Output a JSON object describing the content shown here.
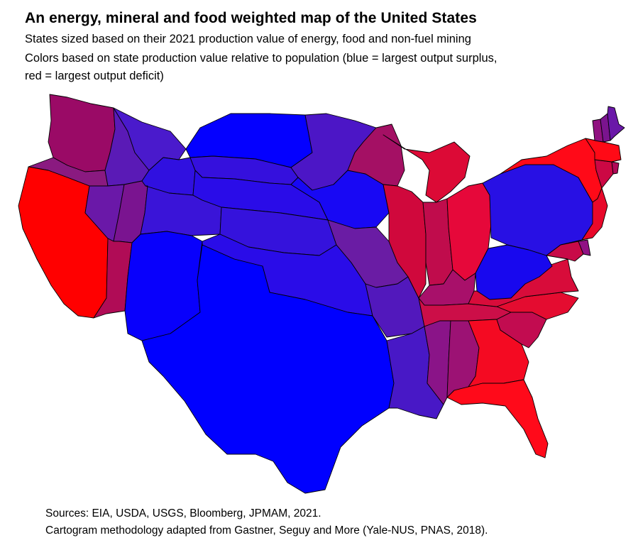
{
  "title": "An energy, mineral and food weighted map of the United States",
  "subtitle_lines": [
    "States sized based on their 2021 production value of energy, food and non-fuel mining",
    "Colors based on state production value relative to population (blue = largest output surplus,",
    "red = largest output deficit)"
  ],
  "sources": [
    "Sources: EIA, USDA, USGS, Bloomberg, JPMAM, 2021.",
    "Cartogram methodology adapted from Gastner, Seguy and More (Yale-NUS, PNAS, 2018)."
  ],
  "color_scale": {
    "surplus": "#0000ff",
    "deficit": "#ff0000"
  },
  "map": {
    "type": "cartogram",
    "regions": [
      {
        "key": "WA",
        "color": "#9a0a66"
      },
      {
        "key": "OR",
        "color": "#8a1a80"
      },
      {
        "key": "CA",
        "color": "#ff0000"
      },
      {
        "key": "ID",
        "color": "#5a1ab6"
      },
      {
        "key": "NV",
        "color": "#6a18a8"
      },
      {
        "key": "UT",
        "color": "#7a1490"
      },
      {
        "key": "AZ",
        "color": "#b00c56"
      },
      {
        "key": "MT",
        "color": "#4a1acc"
      },
      {
        "key": "WY",
        "color": "#3010e0"
      },
      {
        "key": "CO",
        "color": "#3a14d8"
      },
      {
        "key": "NM",
        "color": "#0800fc"
      },
      {
        "key": "ND",
        "color": "#0400ff"
      },
      {
        "key": "SD",
        "color": "#3510dd"
      },
      {
        "key": "NE",
        "color": "#2a0ce8"
      },
      {
        "key": "KS",
        "color": "#3512dc"
      },
      {
        "key": "OK",
        "color": "#2a0ce8"
      },
      {
        "key": "TX",
        "color": "#0000ff"
      },
      {
        "key": "MN",
        "color": "#4c16c6"
      },
      {
        "key": "IA",
        "color": "#1808f4"
      },
      {
        "key": "MO",
        "color": "#6a1ca4"
      },
      {
        "key": "AR",
        "color": "#5218bc"
      },
      {
        "key": "LA",
        "color": "#4818c6"
      },
      {
        "key": "WI",
        "color": "#a41064"
      },
      {
        "key": "MI",
        "color": "#dc0a36"
      },
      {
        "key": "IL",
        "color": "#d0083c"
      },
      {
        "key": "IN",
        "color": "#c00c4c"
      },
      {
        "key": "OH",
        "color": "#e6083a"
      },
      {
        "key": "KY",
        "color": "#a8106a"
      },
      {
        "key": "TN",
        "color": "#cc0e48"
      },
      {
        "key": "MS",
        "color": "#8a1488"
      },
      {
        "key": "AL",
        "color": "#9c1274"
      },
      {
        "key": "GA",
        "color": "#f40a22"
      },
      {
        "key": "FL",
        "color": "#ff0a1a"
      },
      {
        "key": "SC",
        "color": "#c20c50"
      },
      {
        "key": "NC",
        "color": "#e40c30"
      },
      {
        "key": "VA",
        "color": "#d80c3a"
      },
      {
        "key": "WV",
        "color": "#1808ee"
      },
      {
        "key": "PA",
        "color": "#2810e4"
      },
      {
        "key": "NY",
        "color": "#ff0a18"
      },
      {
        "key": "NJ",
        "color": "#e8082a"
      },
      {
        "key": "MD",
        "color": "#c80a48"
      },
      {
        "key": "DE",
        "color": "#901284"
      },
      {
        "key": "CT",
        "color": "#cc0844"
      },
      {
        "key": "RI",
        "color": "#b00a58"
      },
      {
        "key": "MA",
        "color": "#ff0a16"
      },
      {
        "key": "VT",
        "color": "#901280"
      },
      {
        "key": "NH",
        "color": "#7a148e"
      },
      {
        "key": "ME",
        "color": "#6a18a8"
      }
    ]
  }
}
